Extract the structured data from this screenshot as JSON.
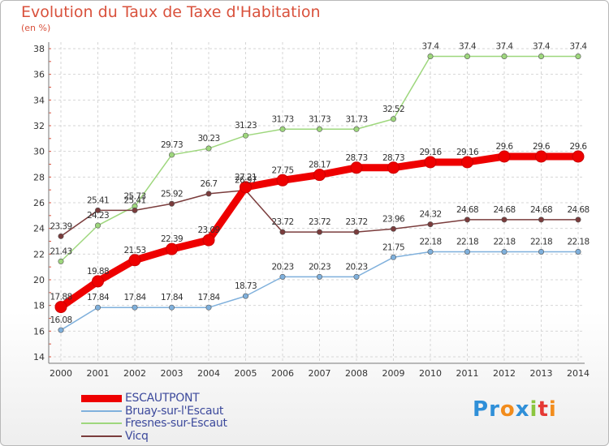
{
  "chart_data": {
    "type": "line",
    "title": "Evolution du Taux de Taxe d'Habitation",
    "subtitle": "(en %)",
    "xlabel": "",
    "ylabel": "",
    "x": [
      "2000",
      "2001",
      "2002",
      "2003",
      "2004",
      "2005",
      "2006",
      "2007",
      "2008",
      "2009",
      "2010",
      "2011",
      "2012",
      "2013",
      "2014"
    ],
    "ylim": [
      14,
      38
    ],
    "yticks": [
      14,
      16,
      18,
      20,
      22,
      24,
      26,
      28,
      30,
      32,
      34,
      36,
      38
    ],
    "grid": true,
    "legend_position": "bottom-left",
    "series": [
      {
        "name": "ESCAUTPONT",
        "color": "#ee0000",
        "labels": [
          "17.88",
          "19.88",
          "21.53",
          "22.39",
          "23.09",
          "27.21",
          "27.75",
          "28.17",
          "28.73",
          "28.73",
          "29.16",
          "29.16",
          "29.6",
          "29.6",
          "29.6"
        ],
        "values": [
          17.88,
          19.88,
          21.53,
          22.39,
          23.09,
          27.21,
          27.75,
          28.17,
          28.73,
          28.73,
          29.16,
          29.16,
          29.6,
          29.6,
          29.6
        ]
      },
      {
        "name": "Bruay-sur-l'Escaut",
        "color": "#7fb0dc",
        "labels": [
          "16.08",
          "17.84",
          "17.84",
          "17.84",
          "17.84",
          "18.73",
          "20.23",
          "20.23",
          "20.23",
          "21.75",
          "22.18",
          "22.18",
          "22.18",
          "22.18",
          "22.18"
        ],
        "values": [
          16.08,
          17.84,
          17.84,
          17.84,
          17.84,
          18.73,
          20.23,
          20.23,
          20.23,
          21.75,
          22.18,
          22.18,
          22.18,
          22.18,
          22.18
        ]
      },
      {
        "name": "Fresnes-sur-Escaut",
        "color": "#9ed77d",
        "labels": [
          "21.43",
          "24.23",
          "25.73",
          "29.73",
          "30.23",
          "31.23",
          "31.73",
          "31.73",
          "31.73",
          "32.52",
          "37.4",
          "37.4",
          "37.4",
          "37.4",
          "37.4"
        ],
        "values": [
          21.43,
          24.23,
          25.73,
          29.73,
          30.23,
          31.23,
          31.73,
          31.73,
          31.73,
          32.52,
          37.4,
          37.4,
          37.4,
          37.4,
          37.4
        ]
      },
      {
        "name": "Vicq",
        "color": "#7a3c3c",
        "labels": [
          "23.39",
          "25.41",
          "25.41",
          "25.92",
          "26.7",
          "26.97",
          "23.72",
          "23.72",
          "23.72",
          "23.96",
          "24.32",
          "24.68",
          "24.68",
          "24.68",
          "24.68"
        ],
        "values": [
          23.39,
          25.41,
          25.41,
          25.92,
          26.7,
          26.97,
          23.72,
          23.72,
          23.72,
          23.96,
          24.32,
          24.68,
          24.68,
          24.68,
          24.68
        ]
      }
    ]
  },
  "logo": {
    "letters": [
      "P",
      "r",
      "o",
      "x",
      "i",
      "t",
      "i"
    ]
  }
}
